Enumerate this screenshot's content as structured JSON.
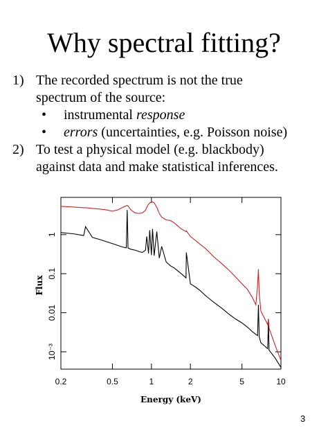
{
  "title": "Why spectral fitting?",
  "list": [
    {
      "marker": "1)",
      "text": "The recorded spectrum is not the true spectrum of the source:",
      "bullets": [
        {
          "marker": "•",
          "parts": [
            {
              "text": "instrumental "
            },
            {
              "text": "response",
              "italic": true
            }
          ]
        },
        {
          "marker": "•",
          "parts": [
            {
              "text": "errors",
              "italic": true
            },
            {
              "text": " (uncertainties, e.g. Poisson noise)"
            }
          ]
        }
      ]
    },
    {
      "marker": "2)",
      "text": "To test a physical model (e.g. blackbody) against data and make statistical inferences.",
      "bullets": []
    }
  ],
  "page_number": "3",
  "chart_data": {
    "type": "line",
    "xlabel": "Energy (keV)",
    "ylabel": "Flux",
    "xlog": true,
    "ylog": true,
    "xlim": [
      0.2,
      10
    ],
    "ylim": [
      0.00036,
      9
    ],
    "xticks": [
      0.2,
      0.5,
      1,
      2,
      5,
      10
    ],
    "yticks": [
      1,
      0.1,
      0.01,
      {
        "value": 0.001,
        "label": "10⁻³"
      }
    ],
    "x": [
      0.2,
      0.25,
      0.3,
      0.31,
      0.35,
      0.4,
      0.45,
      0.5,
      0.55,
      0.6,
      0.64,
      0.65,
      0.66,
      0.7,
      0.75,
      0.8,
      0.85,
      0.9,
      0.92,
      0.95,
      0.97,
      1.0,
      1.02,
      1.05,
      1.1,
      1.15,
      1.2,
      1.3,
      1.4,
      1.5,
      1.7,
      1.85,
      1.86,
      2.0,
      2.2,
      2.4,
      2.6,
      3.0,
      3.5,
      4.0,
      4.5,
      5.0,
      5.5,
      6.0,
      6.4,
      6.6,
      6.7,
      6.8,
      7.0,
      7.5,
      7.9,
      8.0,
      8.1,
      9.0,
      10.0
    ],
    "series": [
      {
        "color": "#000000",
        "values": [
          1.13,
          1.05,
          0.95,
          1.6,
          0.85,
          0.75,
          0.66,
          0.59,
          0.53,
          0.48,
          0.46,
          4.3,
          0.45,
          0.42,
          0.4,
          0.37,
          0.35,
          0.4,
          0.9,
          0.33,
          1.3,
          0.3,
          1.4,
          0.29,
          1.2,
          0.25,
          0.5,
          0.2,
          0.16,
          0.14,
          0.1,
          0.078,
          0.35,
          0.055,
          0.045,
          0.036,
          0.028,
          0.019,
          0.013,
          0.009,
          0.0068,
          0.0055,
          0.0043,
          0.0033,
          0.0028,
          0.0026,
          0.016,
          0.0024,
          0.0017,
          0.0014,
          0.0012,
          0.006,
          0.0011,
          0.0007,
          0.0004
        ]
      },
      {
        "color": "#cc2222",
        "values": [
          5.3,
          5.1,
          4.9,
          4.9,
          4.7,
          4.5,
          4.3,
          4.0,
          4.3,
          5.0,
          5.5,
          5.6,
          5.4,
          4.2,
          3.6,
          3.5,
          3.6,
          4.2,
          5.0,
          6.0,
          6.5,
          6.8,
          6.9,
          6.5,
          5.0,
          3.5,
          2.8,
          2.4,
          2.3,
          2.0,
          1.4,
          1.2,
          1.25,
          0.9,
          0.7,
          0.55,
          0.45,
          0.28,
          0.18,
          0.12,
          0.08,
          0.055,
          0.04,
          0.025,
          0.016,
          0.05,
          0.13,
          0.03,
          0.011,
          0.007,
          0.005,
          0.007,
          0.004,
          0.0015,
          0.0006
        ]
      }
    ]
  }
}
